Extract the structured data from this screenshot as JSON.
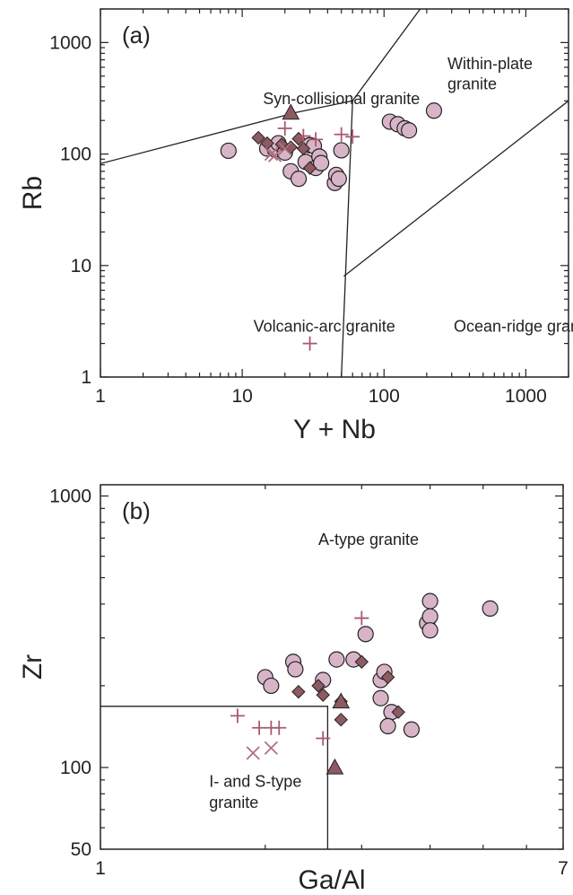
{
  "chart_data": [
    {
      "type": "scatter",
      "panel_label": "(a)",
      "xlabel": "Y + Nb",
      "ylabel": "Rb",
      "xscale": "log",
      "yscale": "log",
      "xlim": [
        1,
        2000
      ],
      "ylim": [
        1,
        2000
      ],
      "xticks": [
        {
          "v": 1,
          "label": "1"
        },
        {
          "v": 10,
          "label": "10"
        },
        {
          "v": 100,
          "label": "100"
        },
        {
          "v": 1000,
          "label": "1000"
        }
      ],
      "yticks": [
        {
          "v": 1,
          "label": "1"
        },
        {
          "v": 10,
          "label": "10"
        },
        {
          "v": 100,
          "label": "100"
        },
        {
          "v": 1000,
          "label": "1000"
        }
      ],
      "field_labels": [
        {
          "text": "Syn-collisional granite",
          "x": 14,
          "y": 280
        },
        {
          "text": "Within-plate",
          "x": 280,
          "y": 580
        },
        {
          "text": "granite",
          "x": 280,
          "y": 380
        },
        {
          "text": "Volcanic-arc granite",
          "x": 12,
          "y": 2.55
        },
        {
          "text": "Ocean-ridge granite",
          "x": 310,
          "y": 2.55
        }
      ],
      "boundaries": [
        [
          [
            1,
            82
          ],
          [
            24,
            236
          ],
          [
            60,
            300
          ],
          [
            180,
            2000
          ]
        ],
        [
          [
            60,
            300
          ],
          [
            50,
            1
          ]
        ],
        [
          [
            52,
            8
          ],
          [
            2000,
            300
          ]
        ]
      ],
      "series": [
        {
          "marker": "circle",
          "points": [
            [
              8,
              107
            ],
            [
              15,
              112
            ],
            [
              17,
              110
            ],
            [
              18,
              125
            ],
            [
              20,
              103
            ],
            [
              22,
              70
            ],
            [
              25,
              60
            ],
            [
              28,
              85
            ],
            [
              30,
              120
            ],
            [
              32,
              118
            ],
            [
              33,
              75
            ],
            [
              35,
              95
            ],
            [
              36,
              83
            ],
            [
              45,
              55
            ],
            [
              46,
              65
            ],
            [
              48,
              60
            ],
            [
              50,
              108
            ],
            [
              110,
              195
            ],
            [
              125,
              185
            ],
            [
              140,
              170
            ],
            [
              150,
              163
            ],
            [
              225,
              245
            ]
          ]
        },
        {
          "marker": "diamond",
          "points": [
            [
              13,
              140
            ],
            [
              15,
              125
            ],
            [
              19,
              122
            ],
            [
              22,
              115
            ],
            [
              25,
              137
            ],
            [
              27,
              112
            ],
            [
              30,
              75
            ]
          ]
        },
        {
          "marker": "triangle",
          "points": [
            [
              22,
              235
            ]
          ]
        },
        {
          "marker": "plus",
          "points": [
            [
              20,
              170
            ],
            [
              27,
              145
            ],
            [
              33,
              135
            ],
            [
              50,
              150
            ],
            [
              60,
              143
            ],
            [
              30,
              2
            ]
          ]
        },
        {
          "marker": "cross",
          "points": [
            [
              16,
              100
            ],
            [
              17,
              97
            ],
            [
              20,
              112
            ]
          ]
        }
      ]
    },
    {
      "type": "scatter",
      "panel_label": "(b)",
      "xlabel": "Ga/Al",
      "ylabel": "Zr",
      "xscale": "log",
      "yscale": "log",
      "xlim": [
        1,
        7
      ],
      "ylim": [
        50,
        1100
      ],
      "xticks": [
        {
          "v": 1,
          "label": "1"
        },
        {
          "v": 7,
          "label": "7"
        }
      ],
      "yticks": [
        {
          "v": 50,
          "label": "50"
        },
        {
          "v": 100,
          "label": "100"
        },
        {
          "v": 1000,
          "label": "1000"
        }
      ],
      "field_labels": [
        {
          "text": "A-type granite",
          "x": 2.5,
          "y": 660
        },
        {
          "text": "I- and S-type",
          "x": 1.58,
          "y": 85
        },
        {
          "text": "granite",
          "x": 1.58,
          "y": 71
        }
      ],
      "boundaries": [
        [
          [
            1,
            168
          ],
          [
            2.6,
            168
          ],
          [
            2.6,
            50
          ]
        ]
      ],
      "series": [
        {
          "marker": "circle",
          "points": [
            [
              2.0,
              215
            ],
            [
              2.05,
              200
            ],
            [
              2.25,
              245
            ],
            [
              2.27,
              230
            ],
            [
              2.55,
              210
            ],
            [
              2.7,
              250
            ],
            [
              2.9,
              250
            ],
            [
              3.05,
              310
            ],
            [
              3.25,
              180
            ],
            [
              3.4,
              160
            ],
            [
              3.25,
              210
            ],
            [
              3.3,
              225
            ],
            [
              3.35,
              142
            ],
            [
              3.7,
              138
            ],
            [
              3.95,
              340
            ],
            [
              4.0,
              410
            ],
            [
              4.0,
              360
            ],
            [
              4.0,
              320
            ],
            [
              5.15,
              385
            ]
          ]
        },
        {
          "marker": "diamond",
          "points": [
            [
              2.3,
              190
            ],
            [
              2.5,
              200
            ],
            [
              2.55,
              185
            ],
            [
              2.75,
              175
            ],
            [
              2.75,
              150
            ],
            [
              3.0,
              245
            ],
            [
              3.35,
              215
            ],
            [
              3.5,
              160
            ]
          ]
        },
        {
          "marker": "triangle",
          "points": [
            [
              2.75,
              175
            ],
            [
              2.68,
              100
            ]
          ]
        },
        {
          "marker": "plus",
          "points": [
            [
              1.78,
              155
            ],
            [
              1.95,
              140
            ],
            [
              2.05,
              140
            ],
            [
              2.12,
              140
            ],
            [
              2.55,
              128
            ],
            [
              3.0,
              355
            ]
          ]
        },
        {
          "marker": "cross",
          "points": [
            [
              1.9,
              113
            ],
            [
              2.05,
              118
            ]
          ]
        }
      ]
    }
  ],
  "colors": {
    "circle_fill": "#d8b4c8",
    "diamond_fill": "#8e5a62",
    "plus_stroke": "#a85a6e",
    "cross_stroke": "#b07080",
    "marker_stroke": "#222222",
    "axis": "#222222"
  }
}
